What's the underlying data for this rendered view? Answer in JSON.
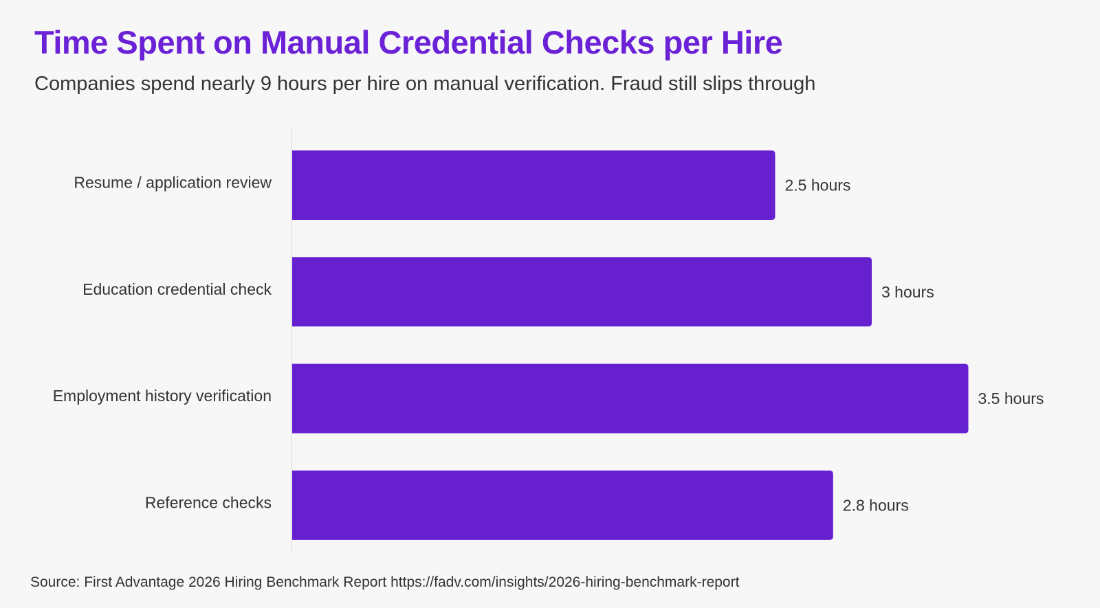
{
  "title": "Time Spent on Manual Credential Checks per Hire",
  "subtitle": "Companies spend nearly 9 hours per hire on manual verification. Fraud still slips through",
  "source": "Source: First Advantage 2026 Hiring Benchmark Report https://fadv.com/insights/2026-hiring-benchmark-report",
  "colors": {
    "title": "#6b21d6",
    "bar": "#6720d0",
    "text": "#333333",
    "axis": "#e2e2e6",
    "background": "#f7f7f8"
  },
  "chart_data": {
    "type": "bar",
    "orientation": "horizontal",
    "title": "Time Spent on Manual Credential Checks per Hire",
    "subtitle": "Companies spend nearly 9 hours per hire on manual verification. Fraud still slips through",
    "categories": [
      "Resume / application review",
      "Education credential check",
      "Employment history verification",
      "Reference checks"
    ],
    "values": [
      2.5,
      3,
      3.5,
      2.8
    ],
    "value_labels": [
      "2.5 hours",
      "3 hours",
      "3.5 hours",
      "2.8 hours"
    ],
    "unit": "hours",
    "xlabel": "",
    "ylabel": "",
    "grid": false,
    "legend": "none"
  }
}
